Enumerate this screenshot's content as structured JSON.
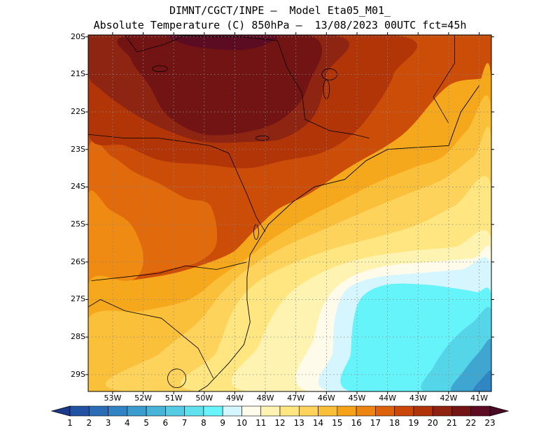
{
  "title": {
    "line1": "DIMNT/CGCT/INPE —  Model Eta05_M01_",
    "line2": "Absolute Temperature (C) 850hPa —  13/08/2023 00UTC fct=45h"
  },
  "axes": {
    "lat_labels": [
      "20S",
      "21S",
      "22S",
      "23S",
      "24S",
      "25S",
      "26S",
      "27S",
      "28S",
      "29S"
    ],
    "lon_labels": [
      "53W",
      "52W",
      "51W",
      "50W",
      "49W",
      "48W",
      "47W",
      "46W",
      "45W",
      "44W",
      "43W",
      "42W",
      "41W"
    ],
    "grid": true
  },
  "colorbar": {
    "labels": [
      "1",
      "2",
      "3",
      "4",
      "5",
      "6",
      "7",
      "8",
      "9",
      "10",
      "11",
      "12",
      "13",
      "14",
      "15",
      "16",
      "17",
      "18",
      "19",
      "20",
      "21",
      "22",
      "23"
    ],
    "colors": [
      "#1c3a8c",
      "#2252a3",
      "#2a6cb6",
      "#3283c4",
      "#3c9ccd",
      "#47b4d8",
      "#55cce3",
      "#61e0ee",
      "#69f4fb",
      "#d6f6ff",
      "#fffbea",
      "#fff3b2",
      "#ffe680",
      "#fdd35c",
      "#fabf38",
      "#f5a21a",
      "#ec8512",
      "#dd620b",
      "#c94708",
      "#b03408",
      "#902210",
      "#741515",
      "#5c0c22",
      "#4a0a24"
    ]
  },
  "palette": {
    "deep": "#731414",
    "darkred": "#8e2412",
    "red": "#b23508",
    "redorange": "#cc4d08",
    "orange": "#e06a0c",
    "orange2": "#ef8a12",
    "amber": "#f6a81c",
    "yellow2": "#fac03a",
    "yellow": "#fdd35c",
    "lightyellow": "#ffe680",
    "paleyellow": "#fff3b2",
    "cream": "#fffbea",
    "lightcyan": "#d6f6ff",
    "cyan": "#66f4fb",
    "cyan2": "#55d6e8",
    "blue1": "#3fa6d2",
    "blue2": "#2f86c2",
    "blue3": "#286ab2"
  },
  "map_data": {
    "plot_extent": {
      "lon": [
        -53.8,
        -40.6
      ],
      "lat": [
        -29.45,
        -19.95
      ]
    },
    "temperature_regions": [
      {
        "temp_c": 19,
        "color": "redorange",
        "ring": [
          [
            -53.8,
            -19.95
          ],
          [
            -40.6,
            -19.95
          ],
          [
            -40.6,
            -21.0
          ],
          [
            -42.0,
            -21.3
          ],
          [
            -43.5,
            -22.6
          ],
          [
            -45.3,
            -23.5
          ],
          [
            -46.6,
            -24.2
          ],
          [
            -47.6,
            -24.6
          ],
          [
            -48.4,
            -25.2
          ],
          [
            -49.0,
            -25.7
          ],
          [
            -49.6,
            -26.0
          ],
          [
            -50.3,
            -26.2
          ],
          [
            -51.2,
            -26.4
          ],
          [
            -52.2,
            -26.6
          ],
          [
            -53.0,
            -26.8
          ],
          [
            -53.8,
            -26.9
          ]
        ]
      },
      {
        "temp_c": 18,
        "color": "orange",
        "ring": [
          [
            -53.8,
            -23.0
          ],
          [
            -53.0,
            -23.2
          ],
          [
            -52.3,
            -23.6
          ],
          [
            -51.5,
            -23.9
          ],
          [
            -50.6,
            -24.3
          ],
          [
            -49.8,
            -24.5
          ],
          [
            -49.6,
            -25.5
          ],
          [
            -50.2,
            -26.0
          ],
          [
            -51.2,
            -26.2
          ],
          [
            -52.4,
            -26.4
          ],
          [
            -53.2,
            -26.6
          ],
          [
            -53.8,
            -26.7
          ]
        ]
      },
      {
        "temp_c": 17,
        "color": "orange2",
        "ring": [
          [
            -53.8,
            -24.2
          ],
          [
            -53.1,
            -24.6
          ],
          [
            -52.4,
            -25.0
          ],
          [
            -52.0,
            -25.8
          ],
          [
            -52.2,
            -26.4
          ],
          [
            -53.0,
            -26.6
          ],
          [
            -53.8,
            -26.7
          ]
        ]
      },
      {
        "temp_c": 16,
        "color": "amber",
        "ring": [
          [
            -53.8,
            -26.6
          ],
          [
            -52.5,
            -26.5
          ],
          [
            -51.0,
            -26.3
          ],
          [
            -49.8,
            -26.0
          ],
          [
            -49.0,
            -25.7
          ],
          [
            -48.3,
            -25.2
          ],
          [
            -47.4,
            -24.6
          ],
          [
            -46.5,
            -24.2
          ],
          [
            -45.3,
            -23.6
          ],
          [
            -44.0,
            -23.2
          ],
          [
            -43.0,
            -22.9
          ],
          [
            -42.0,
            -22.5
          ],
          [
            -41.2,
            -21.7
          ],
          [
            -40.6,
            -21.2
          ],
          [
            -40.6,
            -29.45
          ],
          [
            -53.8,
            -29.45
          ]
        ]
      },
      {
        "temp_c": 15,
        "color": "yellow2",
        "ring": [
          [
            -53.8,
            -27.5
          ],
          [
            -52.0,
            -27.3
          ],
          [
            -50.5,
            -27.0
          ],
          [
            -49.5,
            -26.4
          ],
          [
            -48.6,
            -25.9
          ],
          [
            -47.8,
            -25.4
          ],
          [
            -46.8,
            -24.9
          ],
          [
            -45.6,
            -24.4
          ],
          [
            -44.4,
            -23.9
          ],
          [
            -43.2,
            -23.5
          ],
          [
            -42.2,
            -23.2
          ],
          [
            -41.4,
            -22.5
          ],
          [
            -40.6,
            -22.0
          ],
          [
            -40.6,
            -29.45
          ],
          [
            -53.8,
            -29.45
          ]
        ]
      },
      {
        "temp_c": 14,
        "color": "yellow",
        "ring": [
          [
            -52.6,
            -29.45
          ],
          [
            -51.4,
            -28.4
          ],
          [
            -50.2,
            -27.6
          ],
          [
            -49.4,
            -26.8
          ],
          [
            -48.6,
            -26.2
          ],
          [
            -47.4,
            -25.6
          ],
          [
            -46.0,
            -25.1
          ],
          [
            -44.6,
            -24.6
          ],
          [
            -43.4,
            -24.2
          ],
          [
            -42.2,
            -23.8
          ],
          [
            -41.2,
            -23.2
          ],
          [
            -40.6,
            -22.8
          ],
          [
            -40.6,
            -29.45
          ]
        ]
      },
      {
        "temp_c": 13,
        "color": "lightyellow",
        "ring": [
          [
            -50.2,
            -29.45
          ],
          [
            -49.6,
            -28.4
          ],
          [
            -49.0,
            -27.2
          ],
          [
            -48.2,
            -26.5
          ],
          [
            -47.0,
            -26.0
          ],
          [
            -45.6,
            -25.6
          ],
          [
            -44.2,
            -25.3
          ],
          [
            -43.0,
            -25.0
          ],
          [
            -41.8,
            -24.5
          ],
          [
            -40.6,
            -24.0
          ],
          [
            -40.6,
            -29.45
          ]
        ]
      },
      {
        "temp_c": 12,
        "color": "paleyellow",
        "ring": [
          [
            -48.6,
            -29.45
          ],
          [
            -48.2,
            -28.2
          ],
          [
            -47.4,
            -27.0
          ],
          [
            -46.2,
            -26.3
          ],
          [
            -44.8,
            -25.9
          ],
          [
            -43.2,
            -25.7
          ],
          [
            -41.8,
            -25.6
          ],
          [
            -40.6,
            -25.4
          ],
          [
            -40.6,
            -29.45
          ]
        ]
      },
      {
        "temp_c": 11,
        "color": "cream",
        "ring": [
          [
            -46.6,
            -29.45
          ],
          [
            -46.4,
            -28.0
          ],
          [
            -46.0,
            -27.0
          ],
          [
            -45.2,
            -26.4
          ],
          [
            -44.0,
            -26.1
          ],
          [
            -42.6,
            -26.0
          ],
          [
            -41.2,
            -25.9
          ],
          [
            -40.6,
            -25.8
          ],
          [
            -40.6,
            -29.45
          ]
        ]
      },
      {
        "temp_c": 10,
        "color": "lightcyan",
        "ring": [
          [
            -45.9,
            -29.45
          ],
          [
            -45.8,
            -28.4
          ],
          [
            -45.7,
            -27.4
          ],
          [
            -45.3,
            -26.7
          ],
          [
            -44.3,
            -26.4
          ],
          [
            -43.0,
            -26.3
          ],
          [
            -41.6,
            -26.2
          ],
          [
            -40.6,
            -26.1
          ],
          [
            -40.6,
            -29.45
          ]
        ]
      },
      {
        "temp_c": 9,
        "color": "cyan",
        "ring": [
          [
            -45.2,
            -29.45
          ],
          [
            -45.2,
            -28.4
          ],
          [
            -45.1,
            -27.5
          ],
          [
            -44.8,
            -26.9
          ],
          [
            -44.0,
            -26.6
          ],
          [
            -42.8,
            -26.6
          ],
          [
            -41.8,
            -26.7
          ],
          [
            -41.1,
            -26.8
          ],
          [
            -40.6,
            -26.9
          ],
          [
            -40.6,
            -29.45
          ]
        ]
      },
      {
        "temp_c": 8,
        "color": "cyan2",
        "ring": [
          [
            -42.8,
            -29.45
          ],
          [
            -42.5,
            -28.8
          ],
          [
            -41.9,
            -28.1
          ],
          [
            -41.2,
            -27.6
          ],
          [
            -40.6,
            -27.3
          ],
          [
            -40.6,
            -29.45
          ]
        ]
      },
      {
        "temp_c": 7,
        "color": "blue1",
        "ring": [
          [
            -41.9,
            -29.45
          ],
          [
            -41.5,
            -28.9
          ],
          [
            -41.0,
            -28.4
          ],
          [
            -40.6,
            -28.1
          ],
          [
            -40.6,
            -29.45
          ]
        ]
      },
      {
        "temp_c": 6,
        "color": "blue2",
        "ring": [
          [
            -41.2,
            -29.45
          ],
          [
            -40.9,
            -29.1
          ],
          [
            -40.6,
            -28.9
          ],
          [
            -40.6,
            -29.45
          ]
        ]
      },
      {
        "temp_c": 20,
        "color": "red",
        "ring": [
          [
            -53.8,
            -19.95
          ],
          [
            -43.8,
            -19.95
          ],
          [
            -43.8,
            -21.0
          ],
          [
            -44.6,
            -22.1
          ],
          [
            -45.3,
            -22.7
          ],
          [
            -46.2,
            -23.1
          ],
          [
            -47.4,
            -23.3
          ],
          [
            -48.6,
            -23.5
          ],
          [
            -50.0,
            -23.4
          ],
          [
            -51.4,
            -23.3
          ],
          [
            -52.6,
            -22.9
          ],
          [
            -53.8,
            -22.6
          ]
        ]
      },
      {
        "temp_c": 21,
        "color": "darkred",
        "ring": [
          [
            -53.8,
            -19.95
          ],
          [
            -45.8,
            -19.95
          ],
          [
            -46.0,
            -21.0
          ],
          [
            -46.4,
            -22.1
          ],
          [
            -47.4,
            -22.7
          ],
          [
            -48.6,
            -22.8
          ],
          [
            -50.0,
            -22.8
          ],
          [
            -51.2,
            -22.5
          ],
          [
            -52.4,
            -22.0
          ],
          [
            -53.4,
            -21.4
          ],
          [
            -53.8,
            -21.0
          ]
        ]
      },
      {
        "temp_c": 22,
        "color": "deep",
        "ring": [
          [
            -52.4,
            -19.95
          ],
          [
            -46.6,
            -19.95
          ],
          [
            -46.6,
            -21.3
          ],
          [
            -47.3,
            -22.1
          ],
          [
            -48.4,
            -22.5
          ],
          [
            -50.0,
            -22.6
          ],
          [
            -51.2,
            -22.1
          ],
          [
            -51.8,
            -21.3
          ],
          [
            -52.4,
            -20.6
          ]
        ]
      },
      {
        "temp_c": 23,
        "color": "#5c0c22",
        "ring": [
          [
            -51.0,
            -19.95
          ],
          [
            -47.8,
            -19.95
          ],
          [
            -48.0,
            -20.2
          ],
          [
            -48.8,
            -20.35
          ],
          [
            -50.0,
            -20.3
          ],
          [
            -50.8,
            -20.15
          ]
        ]
      }
    ],
    "coastline": [
      [
        -41.0,
        -21.3
      ],
      [
        -41.6,
        -22.0
      ],
      [
        -42.0,
        -22.9
      ],
      [
        -43.1,
        -22.95
      ],
      [
        -44.0,
        -23.0
      ],
      [
        -44.7,
        -23.3
      ],
      [
        -45.4,
        -23.8
      ],
      [
        -46.4,
        -24.0
      ],
      [
        -47.1,
        -24.4
      ],
      [
        -47.9,
        -25.0
      ],
      [
        -48.5,
        -25.8
      ],
      [
        -48.6,
        -26.4
      ],
      [
        -48.6,
        -27.0
      ],
      [
        -48.5,
        -27.6
      ],
      [
        -48.7,
        -28.2
      ],
      [
        -49.2,
        -28.7
      ],
      [
        -49.9,
        -29.3
      ],
      [
        -50.2,
        -29.45
      ]
    ],
    "borders": [
      [
        [
          -53.7,
          -26.5
        ],
        [
          -52.6,
          -26.4
        ],
        [
          -51.5,
          -26.3
        ],
        [
          -50.6,
          -26.1
        ],
        [
          -49.6,
          -26.2
        ],
        [
          -48.6,
          -26.0
        ]
      ],
      [
        [
          -53.8,
          -22.6
        ],
        [
          -52.6,
          -22.7
        ],
        [
          -51.5,
          -22.7
        ],
        [
          -50.6,
          -22.8
        ],
        [
          -49.8,
          -22.9
        ],
        [
          -49.2,
          -23.1
        ],
        [
          -48.6,
          -24.2
        ],
        [
          -48.3,
          -24.8
        ],
        [
          -48.0,
          -25.2
        ]
      ],
      [
        [
          -52.6,
          -19.95
        ],
        [
          -52.2,
          -20.4
        ],
        [
          -51.3,
          -20.2
        ],
        [
          -50.6,
          -19.95
        ]
      ],
      [
        [
          -51.0,
          -19.95
        ],
        [
          -49.8,
          -20.0
        ],
        [
          -48.8,
          -20.0
        ],
        [
          -47.6,
          -20.1
        ],
        [
          -47.3,
          -20.8
        ],
        [
          -46.8,
          -21.5
        ],
        [
          -46.7,
          -22.2
        ],
        [
          -45.9,
          -22.5
        ],
        [
          -45.1,
          -22.6
        ],
        [
          -44.6,
          -22.7
        ]
      ],
      [
        [
          -42.0,
          -22.3
        ],
        [
          -42.5,
          -21.6
        ],
        [
          -41.8,
          -20.7
        ],
        [
          -41.8,
          -19.95
        ]
      ],
      [
        [
          -53.8,
          -27.2
        ],
        [
          -53.4,
          -27.0
        ],
        [
          -52.6,
          -27.3
        ],
        [
          -51.4,
          -27.5
        ],
        [
          -50.2,
          -28.3
        ],
        [
          -49.7,
          -29.1
        ]
      ]
    ],
    "lakes": [
      {
        "lon": -51.45,
        "lat": -20.85,
        "rx": 0.25,
        "ry": 0.08
      },
      {
        "lon": -45.9,
        "lat": -21.0,
        "rx": 0.25,
        "ry": 0.15
      },
      {
        "lon": -48.1,
        "lat": -22.7,
        "rx": 0.22,
        "ry": 0.06
      },
      {
        "lon": -48.3,
        "lat": -25.2,
        "rx": 0.08,
        "ry": 0.2
      },
      {
        "lon": -50.9,
        "lat": -29.1,
        "rx": 0.3,
        "ry": 0.25
      },
      {
        "lon": -46.0,
        "lat": -21.4,
        "rx": 0.1,
        "ry": 0.25
      }
    ]
  }
}
